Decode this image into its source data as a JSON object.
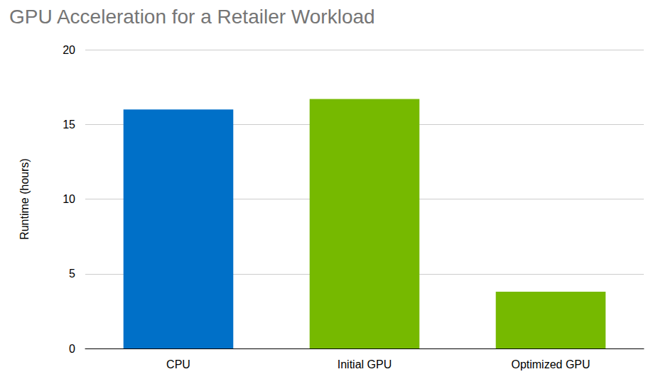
{
  "chart_data": {
    "type": "bar",
    "title": "GPU Acceleration for a Retailer Workload",
    "y_label": "Runtime (hours)",
    "categories": [
      "CPU",
      "Initial GPU",
      "Optimized GPU"
    ],
    "values": [
      16,
      16.7,
      3.8
    ],
    "colors": [
      "#0070c8",
      "#76b900",
      "#76b900"
    ],
    "ylim": [
      0,
      20
    ],
    "yticks": [
      0,
      5,
      10,
      15,
      20
    ],
    "grid": true
  }
}
